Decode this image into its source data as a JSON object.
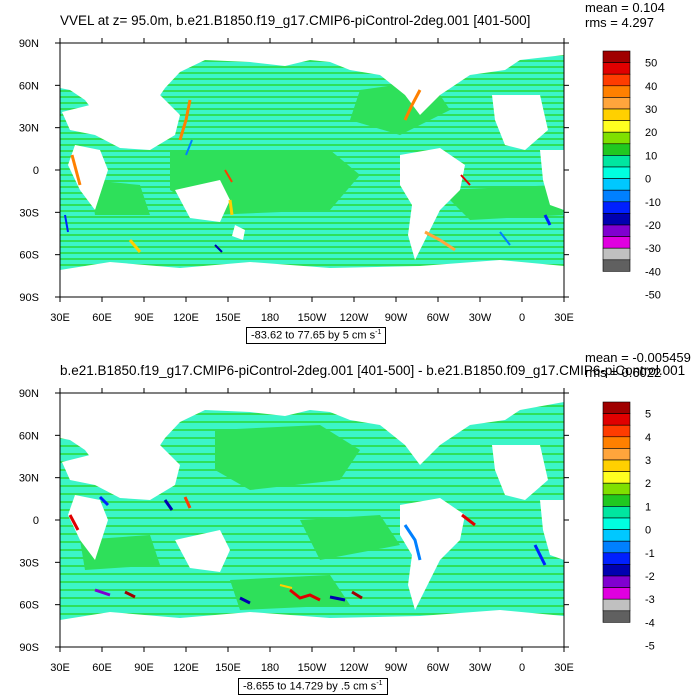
{
  "panels": [
    {
      "title": "VVEL at z=  95.0m, b.e21.B1850.f19_g17.CMIP6-piControl-2deg.001 [401-500]",
      "mean_text": "mean = 0.104",
      "rms_text": "rms = 4.297",
      "range_text": "-83.62 to 77.65 by 5 cm s",
      "range_unit_sup": "-1",
      "colorbar_labels": [
        "50",
        "40",
        "30",
        "20",
        "10",
        "0",
        "-10",
        "-20",
        "-30",
        "-40",
        "-50"
      ]
    },
    {
      "title": "b.e21.B1850.f19_g17.CMIP6-piControl-2deg.001 [401-500] - b.e21.B1850.f09_g17.CMIP6-piControl.001",
      "mean_text": "mean = -0.005459",
      "rms_text": "rms = 0.6022",
      "range_text": "-8.655 to 14.729 by .5 cm s",
      "range_unit_sup": "-1",
      "colorbar_labels": [
        "5",
        "4",
        "3",
        "2",
        "1",
        "0",
        "-1",
        "-2",
        "-3",
        "-4",
        "-5"
      ]
    }
  ],
  "chart_data": [
    {
      "type": "heatmap",
      "title": "VVEL at z=  95.0m, b.e21.B1850.f19_g17.CMIP6-piControl-2deg.001 [401-500]",
      "x_ticks": [
        "30E",
        "60E",
        "90E",
        "120E",
        "150E",
        "180",
        "150W",
        "120W",
        "90W",
        "60W",
        "30W",
        "0",
        "30E"
      ],
      "y_ticks": [
        "90N",
        "60N",
        "30N",
        "0",
        "30S",
        "60S",
        "90S"
      ],
      "colorbar_levels": [
        50,
        40,
        30,
        20,
        10,
        0,
        -10,
        -20,
        -30,
        -40,
        -50
      ],
      "stats": {
        "mean": 0.104,
        "rms": 4.297
      },
      "range": {
        "min": -83.62,
        "max": 77.65,
        "interval": 5,
        "units": "cm s-1"
      }
    },
    {
      "type": "heatmap",
      "title": "b.e21.B1850.f19_g17.CMIP6-piControl-2deg.001 [401-500] - b.e21.B1850.f09_g17.CMIP6-piControl.001",
      "x_ticks": [
        "30E",
        "60E",
        "90E",
        "120E",
        "150E",
        "180",
        "150W",
        "120W",
        "90W",
        "60W",
        "30W",
        "0",
        "30E"
      ],
      "y_ticks": [
        "90N",
        "60N",
        "30N",
        "0",
        "30S",
        "60S",
        "90S"
      ],
      "colorbar_levels": [
        5,
        4,
        3,
        2,
        1,
        0,
        -1,
        -2,
        -3,
        -4,
        -5
      ],
      "stats": {
        "mean": -0.005459,
        "rms": 0.6022
      },
      "range": {
        "min": -8.655,
        "max": 14.729,
        "interval": 0.5,
        "units": "cm s-1"
      }
    }
  ],
  "palette": {
    "ocean_near_zero_pos": "#2ee05a",
    "ocean_near_zero_neg": "#3cf5c8",
    "land": "#ffffff",
    "colorbar": [
      "#a00000",
      "#e00000",
      "#ff3c00",
      "#ff8000",
      "#ffa53c",
      "#ffd000",
      "#ffff20",
      "#80e000",
      "#20c820",
      "#00e6a0",
      "#00ffe0",
      "#00c8ff",
      "#0080ff",
      "#0020ff",
      "#0000b0",
      "#8000d0",
      "#e000e0",
      "#c0c0c0",
      "#606060"
    ]
  }
}
